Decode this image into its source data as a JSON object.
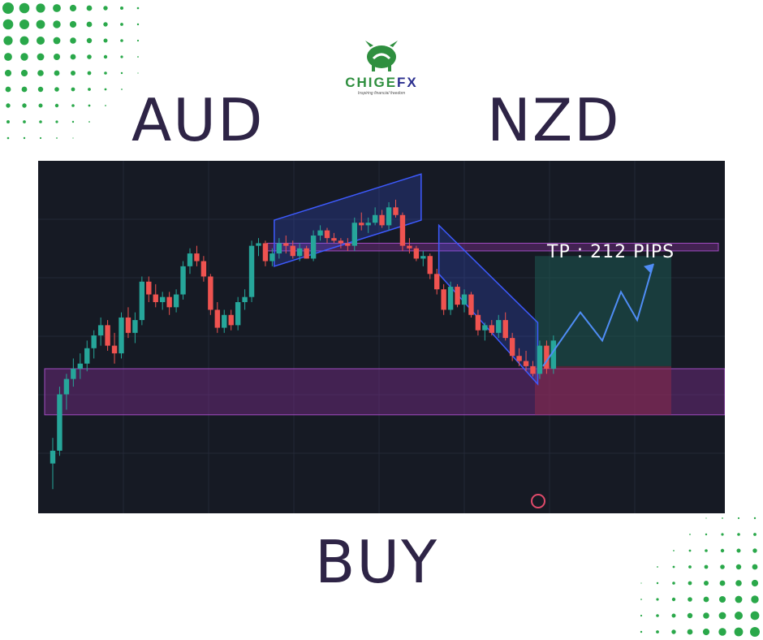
{
  "logo": {
    "brand_part1": "CHIGE",
    "brand_part2": "FX",
    "tagline": "Inspiring financial freedom"
  },
  "pair": {
    "base": "AUD",
    "quote": "NZD"
  },
  "signal": "BUY",
  "colors": {
    "text_dark": "#2e2446",
    "chart_bg": "#161a24",
    "bull": "#26a69a",
    "bear": "#ef5350",
    "zone": "#7b2d8b",
    "channel": "#3d5afe",
    "dots": "#2aa84a"
  },
  "chart_data": {
    "type": "candlestick",
    "title": "",
    "annotation": "TP : 212 PIPS",
    "tp_pips": 212,
    "candles": [
      [
        2.5,
        3.5,
        1.5,
        3
      ],
      [
        3,
        5.5,
        2.8,
        5.2
      ],
      [
        5.2,
        6,
        4.6,
        5.8
      ],
      [
        5.8,
        6.6,
        5.5,
        6.2
      ],
      [
        6.2,
        6.8,
        5.8,
        6.4
      ],
      [
        6.4,
        7.3,
        6.1,
        7
      ],
      [
        7,
        7.7,
        6.6,
        7.5
      ],
      [
        7.5,
        8.2,
        7.1,
        7.9
      ],
      [
        7.9,
        8.1,
        6.9,
        7.1
      ],
      [
        7.1,
        7.6,
        6.4,
        6.8
      ],
      [
        6.8,
        8.4,
        6.6,
        8.2
      ],
      [
        8.2,
        8.6,
        7.4,
        7.6
      ],
      [
        7.6,
        8.4,
        7.2,
        8.1
      ],
      [
        8.1,
        9.8,
        7.9,
        9.6
      ],
      [
        9.6,
        9.8,
        8.8,
        9.1
      ],
      [
        9.1,
        9.5,
        8.6,
        8.8
      ],
      [
        8.8,
        9.2,
        8.5,
        9
      ],
      [
        9,
        9.2,
        8.3,
        8.6
      ],
      [
        8.6,
        9.3,
        8.4,
        9.1
      ],
      [
        9.1,
        10.4,
        8.9,
        10.2
      ],
      [
        10.2,
        10.9,
        9.9,
        10.7
      ],
      [
        10.7,
        11,
        10.2,
        10.4
      ],
      [
        10.4,
        10.6,
        9.6,
        9.8
      ],
      [
        9.8,
        9.9,
        8.3,
        8.5
      ],
      [
        8.5,
        8.8,
        7.6,
        7.8
      ],
      [
        7.8,
        8.5,
        7.6,
        8.3
      ],
      [
        8.3,
        8.5,
        7.7,
        7.9
      ],
      [
        7.9,
        9,
        7.7,
        8.8
      ],
      [
        8.8,
        9.3,
        8.5,
        9
      ],
      [
        9,
        11.2,
        8.8,
        11
      ],
      [
        11,
        11.3,
        10.6,
        11.1
      ],
      [
        11.1,
        11.2,
        10.2,
        10.4
      ],
      [
        10.4,
        10.9,
        10.2,
        10.7
      ],
      [
        10.7,
        11.3,
        10.5,
        11.1
      ],
      [
        11.1,
        11.4,
        10.7,
        11
      ],
      [
        11,
        11.2,
        10.5,
        10.6
      ],
      [
        10.6,
        11.1,
        10.4,
        10.9
      ],
      [
        10.9,
        11,
        10.5,
        10.5
      ],
      [
        10.5,
        11.6,
        10.4,
        11.4
      ],
      [
        11.4,
        11.8,
        11.2,
        11.6
      ],
      [
        11.6,
        11.7,
        11.1,
        11.3
      ],
      [
        11.3,
        11.5,
        11.1,
        11.2
      ],
      [
        11.2,
        11.3,
        10.9,
        11.1
      ],
      [
        11.1,
        11.3,
        10.8,
        11
      ],
      [
        11,
        12.1,
        10.8,
        11.9
      ],
      [
        11.9,
        12.3,
        11.6,
        11.8
      ],
      [
        11.8,
        12.1,
        11.5,
        11.9
      ],
      [
        11.9,
        12.5,
        11.8,
        12.2
      ],
      [
        12.2,
        12.4,
        11.7,
        11.8
      ],
      [
        11.8,
        12.7,
        11.6,
        12.5
      ],
      [
        12.5,
        12.8,
        12.1,
        12.2
      ],
      [
        12.2,
        12.3,
        10.8,
        11
      ],
      [
        11,
        11.3,
        10.7,
        10.9
      ],
      [
        10.9,
        11,
        10.4,
        10.5
      ],
      [
        10.5,
        10.8,
        10.2,
        10.6
      ],
      [
        10.6,
        10.7,
        9.7,
        9.9
      ],
      [
        9.9,
        10.1,
        9.1,
        9.3
      ],
      [
        9.3,
        9.5,
        8.3,
        8.5
      ],
      [
        8.5,
        9.6,
        8.3,
        9.4
      ],
      [
        9.4,
        9.5,
        8.6,
        8.7
      ],
      [
        8.7,
        9.3,
        8.4,
        9.1
      ],
      [
        9.1,
        9.2,
        8.2,
        8.3
      ],
      [
        8.3,
        8.5,
        7.5,
        7.7
      ],
      [
        7.7,
        8,
        7.3,
        7.9
      ],
      [
        7.9,
        8.1,
        7.5,
        7.6
      ],
      [
        7.6,
        8.3,
        7.4,
        8.1
      ],
      [
        8.1,
        8.4,
        7.3,
        7.4
      ],
      [
        7.4,
        7.6,
        6.5,
        6.7
      ],
      [
        6.7,
        7,
        6.3,
        6.5
      ],
      [
        6.5,
        6.9,
        6.1,
        6.3
      ],
      [
        6.3,
        6.5,
        5.9,
        6
      ],
      [
        6,
        7.3,
        5.8,
        7.1
      ],
      [
        7.1,
        7.3,
        6,
        6.2
      ],
      [
        6.2,
        7.5,
        6,
        7.3
      ]
    ],
    "levels": {
      "resistance_zone": [
        10.8,
        11.1
      ],
      "support_zone": [
        4.4,
        6.2
      ],
      "target": 10.6,
      "entry": 6.3,
      "stop_zone": [
        4.4,
        5.8
      ]
    },
    "ylim": [
      1,
      14
    ]
  }
}
